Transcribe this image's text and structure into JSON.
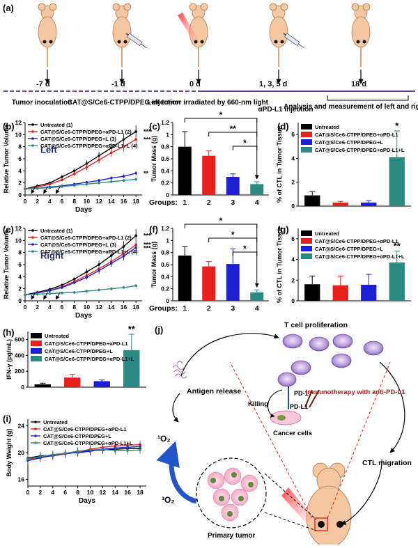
{
  "colors": {
    "black": "#000000",
    "red": "#e8201c",
    "blue": "#1f1fd6",
    "teal": "#2a8a82",
    "purple": "#6a3d9a"
  },
  "timeline": {
    "panel": "(a)",
    "days": [
      "-7 d",
      "-1 d",
      "0 d",
      "1, 3, 5 d",
      "18 d"
    ],
    "events": [
      "Tumor inoculation",
      "CAT@S/Ce6-CTPP/DPEG injection",
      "Left tumor irradiated by 660-nm light",
      "αPD-L1 injection",
      "Analysis and measurement of left and right tumors"
    ]
  },
  "legend_names": {
    "untreated_n": "Untreated (1)",
    "apd_n": "CAT@S/Ce6-CTPP/DPEG+αPD-L1 (2)",
    "l_n": "CAT@S/Ce6-CTPP/DPEG+L (3)",
    "apdl_n": "CAT@S/Ce6-CTPP/DPEG+αPD-L1+L (4)",
    "untreated": "Untreated",
    "apd": "CAT@S/Ce6-CTPP/DPEG+αPD-L1",
    "l": "CAT@S/Ce6-CTPP/DPEG+L",
    "apdl": "CAT@S/Ce6-CTPP/DPEG+αPD-L1+L"
  },
  "chart_data": [
    {
      "id": "b",
      "panel": "(b)",
      "type": "line",
      "annotation": "Left",
      "xlabel": "Days",
      "ylabel": "Relative Tumor Volume",
      "x": [
        0,
        2,
        4,
        6,
        8,
        10,
        12,
        14,
        16,
        18
      ],
      "xlim": [
        0,
        19
      ],
      "ylim": [
        0,
        12
      ],
      "xticks": [
        0,
        2,
        4,
        6,
        8,
        10,
        12,
        14,
        16,
        18
      ],
      "yticks": [
        0,
        2,
        4,
        6,
        8,
        10,
        12
      ],
      "significance": [
        "***",
        "***",
        "**"
      ],
      "series": [
        {
          "name": "Untreated (1)",
          "color": "#000000",
          "values": [
            1,
            1.5,
            2,
            3,
            4,
            5.2,
            6.5,
            7.8,
            9.2,
            10.5
          ]
        },
        {
          "name": "CAT@S/Ce6-CTPP/DPEG+αPD-L1 (2)",
          "color": "#e8201c",
          "values": [
            1,
            1.3,
            1.8,
            2.5,
            3.5,
            4.6,
            5.8,
            7,
            8,
            9.2
          ]
        },
        {
          "name": "CAT@S/Ce6-CTPP/DPEG+L (3)",
          "color": "#1f1fd6",
          "values": [
            1,
            1.1,
            1.3,
            1.5,
            1.8,
            2.1,
            2.4,
            2.8,
            3.1,
            3.6
          ]
        },
        {
          "name": "CAT@S/Ce6-CTPP/DPEG+αPD-L1+L (4)",
          "color": "#2a8a82",
          "values": [
            1,
            1.1,
            1.2,
            1.4,
            1.6,
            1.8,
            2,
            2.2,
            2.4,
            2.6
          ]
        }
      ]
    },
    {
      "id": "c",
      "panel": "(c)",
      "type": "bar",
      "xlabel": "Groups:",
      "ylabel": "Tumor Mass (g)",
      "categories": [
        "1",
        "2",
        "3",
        "4"
      ],
      "values": [
        0.8,
        0.65,
        0.3,
        0.18
      ],
      "errors": [
        0.25,
        0.08,
        0.05,
        0.04
      ],
      "colors": [
        "#000000",
        "#e8201c",
        "#1f1fd6",
        "#2a8a82"
      ],
      "ylim": [
        0,
        1.2
      ],
      "yticks": [
        0,
        0.2,
        0.4,
        0.6,
        0.8,
        1.0,
        1.2
      ],
      "significance": [
        "*",
        "**",
        "*"
      ]
    },
    {
      "id": "d",
      "panel": "(d)",
      "type": "bar",
      "ylabel": "% of CTL in Tumor Tissue",
      "categories": [
        "Untreated",
        "CAT@S/Ce6-CTPP/DPEG+αPD-L1",
        "CAT@S/Ce6-CTPP/DPEG+L",
        "CAT@S/Ce6-CTPP/DPEG+αPD-L1+L"
      ],
      "values": [
        0.9,
        0.3,
        0.3,
        4.1
      ],
      "errors": [
        0.3,
        0.1,
        0.15,
        2.2
      ],
      "colors": [
        "#000000",
        "#e8201c",
        "#1f1fd6",
        "#2a8a82"
      ],
      "ylim": [
        0,
        7
      ],
      "yticks": [
        0,
        2,
        4,
        6
      ],
      "significance": "*"
    },
    {
      "id": "e",
      "panel": "(e)",
      "type": "line",
      "annotation": "Right",
      "xlabel": "Days",
      "ylabel": "Relative Tumor Volume",
      "x": [
        0,
        2,
        4,
        6,
        8,
        10,
        12,
        14,
        16,
        18
      ],
      "xlim": [
        0,
        19
      ],
      "ylim": [
        0,
        12
      ],
      "xticks": [
        0,
        2,
        4,
        6,
        8,
        10,
        12,
        14,
        16,
        18
      ],
      "yticks": [
        0,
        2,
        4,
        6,
        8,
        10,
        12
      ],
      "significance": [
        "***",
        "***",
        "***"
      ],
      "series": [
        {
          "name": "Untreated (1)",
          "color": "#000000",
          "values": [
            1,
            1.4,
            1.9,
            2.6,
            3.6,
            4.8,
            6,
            7.5,
            9,
            10.8
          ]
        },
        {
          "name": "CAT@S/Ce6-CTPP/DPEG+αPD-L1 (2)",
          "color": "#e8201c",
          "values": [
            1,
            1.3,
            1.7,
            2.3,
            3.2,
            4.2,
            5.3,
            6.5,
            7.8,
            9.3
          ]
        },
        {
          "name": "CAT@S/Ce6-CTPP/DPEG+L (3)",
          "color": "#1f1fd6",
          "values": [
            1,
            1.3,
            1.7,
            2.2,
            3,
            3.9,
            5,
            6.2,
            7.4,
            8.8
          ]
        },
        {
          "name": "CAT@S/Ce6-CTPP/DPEG+αPD-L1+L (4)",
          "color": "#2a8a82",
          "values": [
            1,
            1.1,
            1.2,
            1.3,
            1.4,
            1.6,
            1.8,
            2,
            2.2,
            2.5
          ]
        }
      ]
    },
    {
      "id": "f",
      "panel": "(f)",
      "type": "bar",
      "xlabel": "Groups:",
      "ylabel": "Tumor Mass (g)",
      "categories": [
        "1",
        "2",
        "3",
        "4"
      ],
      "values": [
        0.75,
        0.57,
        0.61,
        0.14
      ],
      "errors": [
        0.15,
        0.08,
        0.25,
        0.04
      ],
      "colors": [
        "#000000",
        "#e8201c",
        "#1f1fd6",
        "#2a8a82"
      ],
      "ylim": [
        0,
        1.2
      ],
      "yticks": [
        0,
        0.2,
        0.4,
        0.6,
        0.8,
        1.0,
        1.2
      ],
      "significance": [
        "*",
        "*",
        "*"
      ]
    },
    {
      "id": "g",
      "panel": "(g)",
      "type": "bar",
      "ylabel": "% of CTL in Tumor Tissue",
      "categories": [
        "Untreated",
        "CAT@S/Ce6-CTPP/DPEG+αPD-L1",
        "CAT@S/Ce6-CTPP/DPEG+L",
        "CAT@S/Ce6-CTPP/DPEG+αPD-L1+L"
      ],
      "values": [
        1.6,
        1.5,
        1.55,
        3.7
      ],
      "errors": [
        0.8,
        0.9,
        1.0,
        1.1
      ],
      "colors": [
        "#000000",
        "#e8201c",
        "#1f1fd6",
        "#2a8a82"
      ],
      "ylim": [
        0,
        7
      ],
      "yticks": [
        0,
        2,
        4,
        6
      ],
      "significance": "**"
    },
    {
      "id": "h",
      "panel": "(h)",
      "type": "bar",
      "ylabel": "IFN-γ (pg/mL)",
      "categories": [
        "Untreated",
        "CAT@S/Ce6-CTPP/DPEG+αPD-L1",
        "CAT@S/Ce6-CTPP/DPEG+L",
        "CAT@S/Ce6-CTPP/DPEG+αPD-L1+L"
      ],
      "values": [
        35,
        120,
        75,
        465
      ],
      "errors": [
        15,
        40,
        15,
        200
      ],
      "colors": [
        "#000000",
        "#e8201c",
        "#1f1fd6",
        "#2a8a82"
      ],
      "ylim": [
        0,
        700
      ],
      "yticks": [
        0,
        200,
        400,
        600
      ],
      "significance": "**"
    },
    {
      "id": "i",
      "panel": "(i)",
      "type": "line",
      "xlabel": "Days",
      "ylabel": "Body Weight (g)",
      "x": [
        0,
        2,
        4,
        6,
        8,
        10,
        12,
        14,
        16,
        18
      ],
      "xlim": [
        0,
        19
      ],
      "ylim": [
        15,
        25
      ],
      "xticks": [
        0,
        2,
        4,
        6,
        8,
        10,
        12,
        14,
        16,
        18
      ],
      "yticks": [
        16,
        20,
        24
      ],
      "series": [
        {
          "name": "Untreated",
          "color": "#000000",
          "values": [
            19.2,
            19.5,
            19.6,
            19.8,
            20.1,
            20.3,
            20.4,
            20.5,
            20.6,
            20.6
          ]
        },
        {
          "name": "CAT@S/Ce6-CTPP/DPEG+αPD-L1",
          "color": "#e8201c",
          "values": [
            19,
            19.3,
            19.5,
            19.8,
            20.1,
            20.5,
            20.8,
            21,
            21.1,
            21.2
          ]
        },
        {
          "name": "CAT@S/Ce6-CTPP/DPEG+L",
          "color": "#1f1fd6",
          "values": [
            18.8,
            19.2,
            19.6,
            19.9,
            20,
            20.2,
            20.5,
            20.7,
            20.8,
            20.9
          ]
        },
        {
          "name": "CAT@S/Ce6-CTPP/DPEG+αPD-L1+L",
          "color": "#2a8a82",
          "values": [
            19.1,
            19.4,
            19.7,
            19.9,
            20.2,
            20.4,
            20.5,
            20.3,
            20.3,
            20.4
          ]
        }
      ]
    }
  ],
  "schematic": {
    "panel": "(j)",
    "t_cell_proliferation": "T cell proliferation",
    "antigen_release": "Antigen release",
    "immunotherapy": "Immunotherapy with anti-PD-L1",
    "killing": "Killing",
    "pd1": "PD-1",
    "pdl1": "PD-L1",
    "cancer_cells": "Cancer cells",
    "ctl_migration": "CTL migration",
    "singlet_o2": "¹O₂",
    "triplet_o2": "³O₂",
    "primary_tumor": "Primary tumor"
  }
}
